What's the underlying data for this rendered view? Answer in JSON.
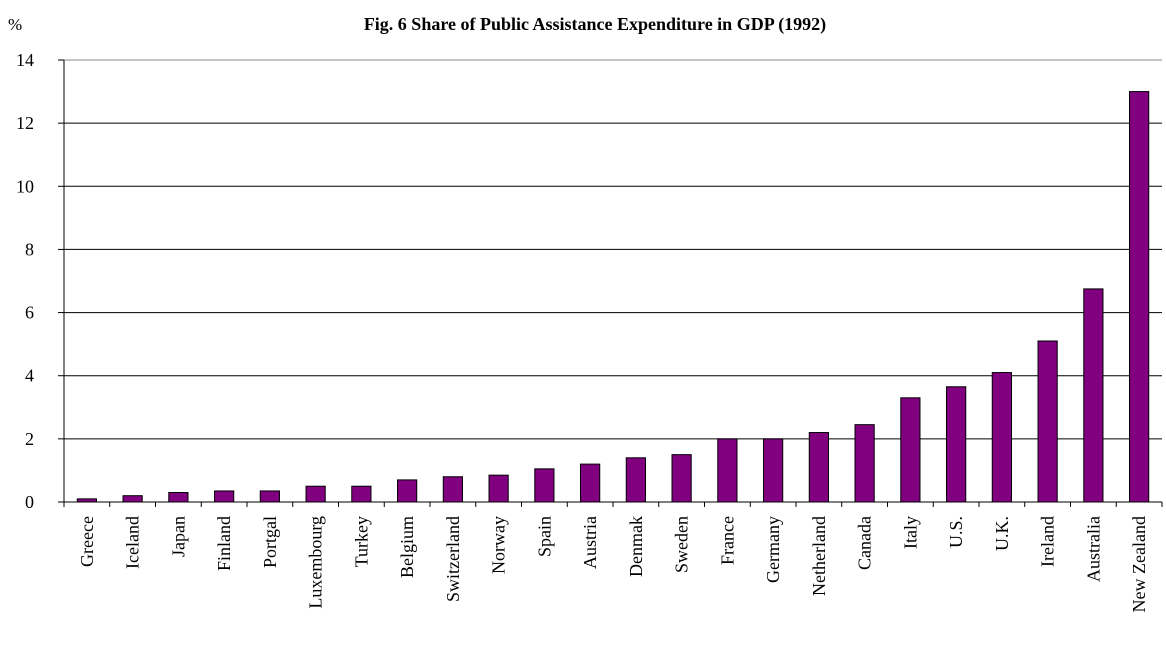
{
  "chart_data": {
    "type": "bar",
    "title": "Fig. 6  Share of Public Assistance Expenditure in GDP (1992)",
    "ylabel": "%",
    "xlabel": "",
    "ylim": [
      0,
      14
    ],
    "yticks": [
      0,
      2,
      4,
      6,
      8,
      10,
      12,
      14
    ],
    "grid": true,
    "bar_color": "#800080",
    "categories": [
      "Greece",
      "Iceland",
      "Japan",
      "Finland",
      "Portgal",
      "Luxembourg",
      "Turkey",
      "Belgium",
      "Switzerland",
      "Norway",
      "Spain",
      "Austria",
      "Denmak",
      "Sweden",
      "France",
      "Germany",
      "Netherland",
      "Canada",
      "Italy",
      "U.S.",
      "U.K.",
      "Ireland",
      "Australia",
      "New Zealand"
    ],
    "values": [
      0.1,
      0.2,
      0.3,
      0.35,
      0.35,
      0.5,
      0.5,
      0.7,
      0.8,
      0.85,
      1.05,
      1.2,
      1.4,
      1.5,
      2.0,
      2.0,
      2.2,
      2.45,
      3.3,
      3.65,
      4.1,
      5.1,
      6.75,
      13.0
    ]
  }
}
